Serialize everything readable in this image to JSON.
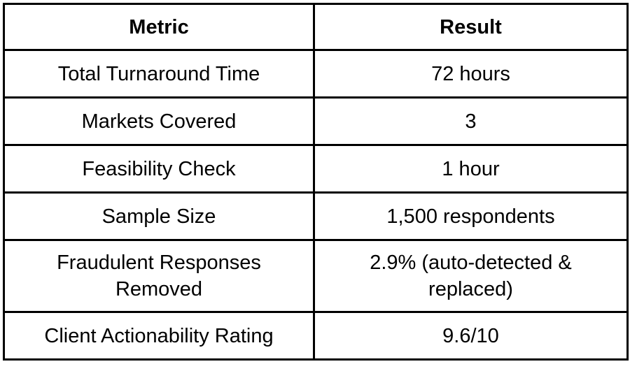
{
  "table": {
    "columns": [
      {
        "label": "Metric"
      },
      {
        "label": "Result"
      }
    ],
    "rows": [
      {
        "metric": "Total Turnaround Time",
        "result": "72 hours"
      },
      {
        "metric": "Markets Covered",
        "result": "3"
      },
      {
        "metric": "Feasibility Check",
        "result": "1 hour"
      },
      {
        "metric": "Sample Size",
        "result": "1,500 respondents"
      },
      {
        "metric": "Fraudulent Responses\nRemoved",
        "result": "2.9% (auto-detected &\nreplaced)"
      },
      {
        "metric": "Client Actionability Rating",
        "result": "9.6/10"
      }
    ],
    "colors": {
      "border": "#000000",
      "text": "#000000",
      "background": "#ffffff"
    }
  }
}
